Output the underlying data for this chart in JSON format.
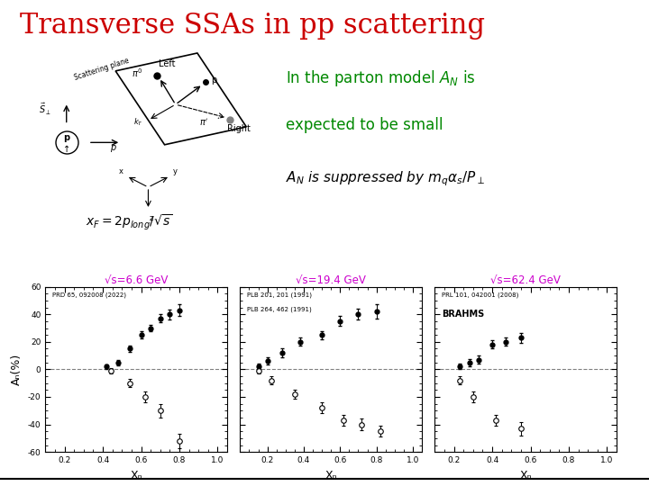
{
  "title": "Transverse SSAs in pp scattering",
  "title_color": "#cc0000",
  "title_fontsize": 22,
  "background_color": "#ffffff",
  "text_green_color": "#008800",
  "plots": [
    {
      "title": "√s=6.6 GeV",
      "title_color": "#cc00cc",
      "ref": "PRD 65, 092008 (2022)",
      "xf_filled": [
        0.42,
        0.48,
        0.54,
        0.6,
        0.65,
        0.7,
        0.75,
        0.8
      ],
      "an_filled": [
        2.0,
        5.0,
        15.0,
        25.0,
        30.0,
        37.0,
        40.0,
        43.0
      ],
      "err_filled": [
        1.5,
        2.0,
        2.5,
        2.5,
        2.5,
        3.0,
        3.5,
        4.0
      ],
      "xf_open": [
        0.44,
        0.54,
        0.62,
        0.7,
        0.8
      ],
      "an_open": [
        -1.0,
        -10.0,
        -20.0,
        -30.0,
        -52.0
      ],
      "err_open": [
        2.0,
        3.0,
        4.0,
        5.0,
        5.0
      ],
      "xlim": [
        0.1,
        1.05
      ],
      "ylim": [
        -60,
        60
      ],
      "xticks": [
        0.2,
        0.4,
        0.6,
        0.8,
        1
      ],
      "xlabel": "Xₙ"
    },
    {
      "title": "√s=19.4 GeV",
      "title_color": "#cc00cc",
      "ref1": "PLB 201, 201 (1991)",
      "ref2": "PLB 264, 462 (1991)",
      "xf_filled": [
        0.15,
        0.2,
        0.28,
        0.38,
        0.5,
        0.6,
        0.7,
        0.8
      ],
      "an_filled": [
        2.0,
        6.0,
        12.0,
        20.0,
        25.0,
        35.0,
        40.0,
        42.0
      ],
      "err_filled": [
        2.0,
        2.5,
        3.0,
        3.0,
        3.0,
        3.5,
        4.0,
        5.0
      ],
      "xf_open": [
        0.15,
        0.22,
        0.35,
        0.5,
        0.62,
        0.72,
        0.82
      ],
      "an_open": [
        -1.0,
        -8.0,
        -18.0,
        -28.0,
        -37.0,
        -40.0,
        -45.0
      ],
      "err_open": [
        2.0,
        3.0,
        3.5,
        4.0,
        4.0,
        4.0,
        4.0
      ],
      "xlim": [
        0.05,
        1.05
      ],
      "ylim": [
        -60,
        60
      ],
      "xticks": [
        0.2,
        0.4,
        0.6,
        0.8,
        1
      ],
      "xlabel": "Xₙ"
    },
    {
      "title": "√s=62.4 GeV",
      "title_color": "#cc00cc",
      "ref1": "PRL 101, 042001 (2008)",
      "ref2": "BRAHMS",
      "xf_filled": [
        0.23,
        0.28,
        0.33,
        0.4,
        0.47,
        0.55
      ],
      "an_filled": [
        2.0,
        5.0,
        7.0,
        18.0,
        20.0,
        23.0
      ],
      "err_filled": [
        2.0,
        2.5,
        3.0,
        3.0,
        3.0,
        3.5
      ],
      "xf_open": [
        0.23,
        0.3,
        0.42,
        0.55
      ],
      "an_open": [
        -8.0,
        -20.0,
        -37.0,
        -43.0
      ],
      "err_open": [
        3.0,
        4.0,
        4.0,
        5.0
      ],
      "xlim": [
        0.1,
        1.05
      ],
      "ylim": [
        -60,
        60
      ],
      "xticks": [
        0.2,
        0.4,
        0.6,
        0.8,
        1
      ],
      "xlabel": "Xₙ"
    }
  ],
  "ylabel": "Aₙ(%)",
  "diagram_color": "#000000"
}
